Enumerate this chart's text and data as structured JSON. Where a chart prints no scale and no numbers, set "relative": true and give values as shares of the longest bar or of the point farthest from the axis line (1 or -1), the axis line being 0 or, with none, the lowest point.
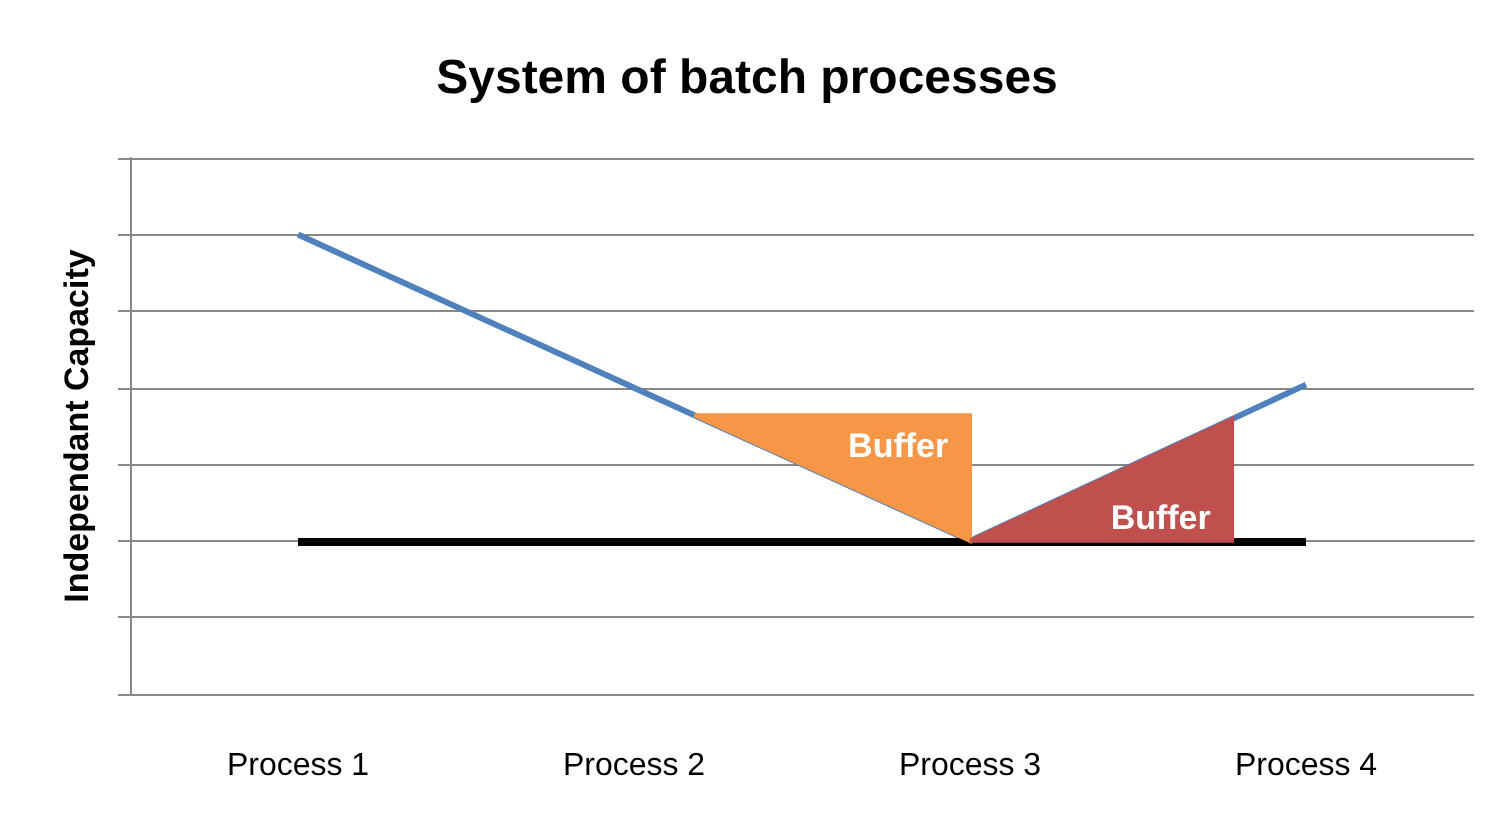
{
  "chart_data": {
    "type": "line",
    "title": "System of batch processes",
    "ylabel": "Independant Capacity",
    "categories": [
      "Process 1",
      "Process 2",
      "Process 3",
      "Process 4"
    ],
    "series": [
      {
        "color": "#4f81bd",
        "values": [
          1,
          0.5,
          0,
          0.51
        ]
      }
    ],
    "relative": true,
    "grid": "y",
    "marker": "none",
    "ref_lines": [
      {
        "axis": "y",
        "value": 0,
        "color": "#000000"
      }
    ],
    "annotations": [
      "Buffer",
      "Buffer"
    ]
  }
}
